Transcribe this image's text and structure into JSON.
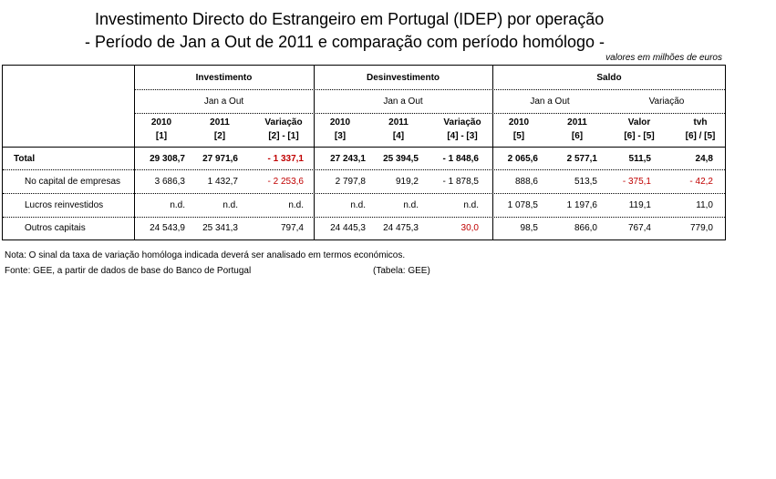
{
  "title": {
    "line1": "Investimento Directo do Estrangeiro em Portugal (IDEP) por operação",
    "line2": "- Período de Jan a Out de 2011 e comparação com período homólogo -"
  },
  "units": "valores em milhões de euros",
  "header": {
    "groups": [
      "Investimento",
      "Desinvestimento",
      "Saldo"
    ],
    "periods": [
      "Jan a Out",
      "Jan a Out",
      "Jan a Out",
      "Variação"
    ],
    "cols": [
      {
        "top": "2010",
        "bottom": "[1]"
      },
      {
        "top": "2011",
        "bottom": "[2]"
      },
      {
        "top": "Variação",
        "bottom": "[2] - [1]"
      },
      {
        "top": "2010",
        "bottom": "[3]"
      },
      {
        "top": "2011",
        "bottom": "[4]"
      },
      {
        "top": "Variação",
        "bottom": "[4] - [3]"
      },
      {
        "top": "2010",
        "bottom": "[5]"
      },
      {
        "top": "2011",
        "bottom": "[6]"
      },
      {
        "top": "Valor",
        "bottom": "[6] - [5]"
      },
      {
        "top": "tvh",
        "bottom": "[6] / [5]"
      }
    ]
  },
  "rows": [
    {
      "label": "Total",
      "bold": true,
      "values": [
        "29 308,7",
        "27 971,6",
        "- 1 337,1",
        "27 243,1",
        "25 394,5",
        "- 1 848,6",
        "2 065,6",
        "2 577,1",
        "511,5",
        "24,8"
      ],
      "red": [
        false,
        false,
        true,
        false,
        false,
        false,
        false,
        false,
        false,
        false
      ]
    },
    {
      "label": "No capital de empresas",
      "bold": false,
      "values": [
        "3 686,3",
        "1 432,7",
        "- 2 253,6",
        "2 797,8",
        "919,2",
        "- 1 878,5",
        "888,6",
        "513,5",
        "- 375,1",
        "- 42,2"
      ],
      "red": [
        false,
        false,
        true,
        false,
        false,
        false,
        false,
        false,
        true,
        true
      ]
    },
    {
      "label": "Lucros reinvestidos",
      "bold": false,
      "values": [
        "n.d.",
        "n.d.",
        "n.d.",
        "n.d.",
        "n.d.",
        "n.d.",
        "1 078,5",
        "1 197,6",
        "119,1",
        "11,0"
      ],
      "red": [
        false,
        false,
        false,
        false,
        false,
        false,
        false,
        false,
        false,
        false
      ]
    },
    {
      "label": "Outros capitais",
      "bold": false,
      "values": [
        "24 543,9",
        "25 341,3",
        "797,4",
        "24 445,3",
        "24 475,3",
        "30,0",
        "98,5",
        "866,0",
        "767,4",
        "779,0"
      ],
      "red": [
        false,
        false,
        false,
        false,
        false,
        true,
        false,
        false,
        false,
        false
      ]
    }
  ],
  "notes": {
    "nota": "Nota: O sinal da taxa de variação homóloga indicada deverá ser analisado em termos económicos.",
    "fonte": "Fonte: GEE, a partir de dados de base do Banco de Portugal",
    "tabela": "(Tabela: GEE)"
  }
}
